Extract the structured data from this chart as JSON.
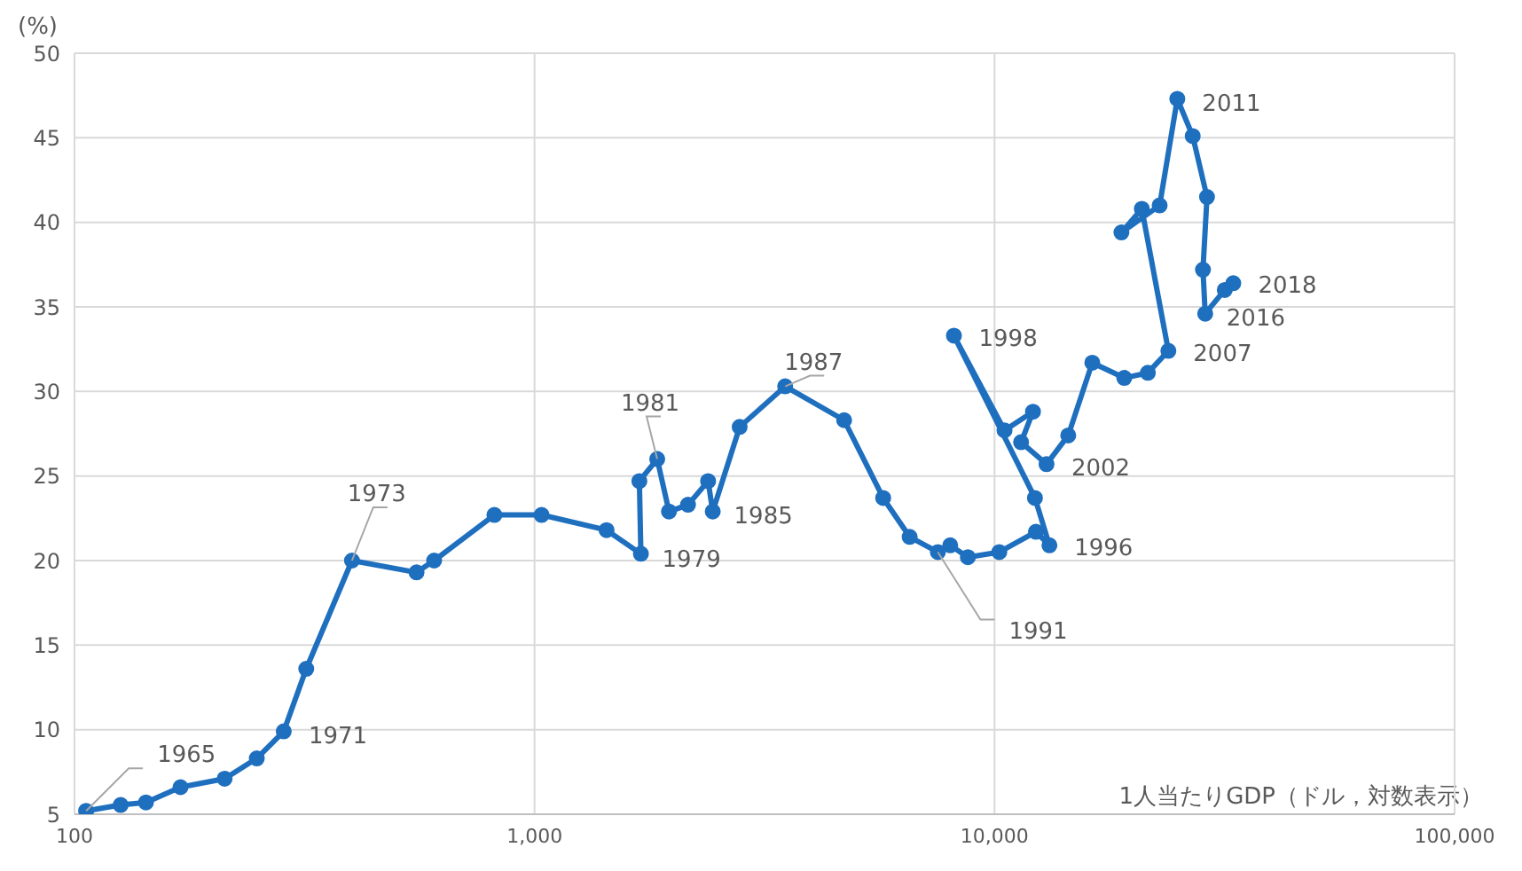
{
  "chart_data": {
    "type": "line",
    "ylabel": "(%)",
    "xlabel": "1人当たりGDP（ドル，対数表示）",
    "x": [
      106,
      126,
      143,
      170,
      212,
      249,
      285,
      319,
      401,
      554,
      605,
      818,
      1036,
      1434,
      1703,
      1690,
      1848,
      1960,
      2156,
      2384,
      2440,
      2792,
      3506,
      4710,
      5726,
      6538,
      7530,
      8010,
      8750,
      10240,
      12300,
      13160,
      12240,
      8160,
      10510,
      12120,
      11420,
      12970,
      14460,
      16310,
      19140,
      21540,
      23870,
      20900,
      18870,
      22850,
      24960,
      26960,
      28960,
      28380,
      28700,
      31650,
      33030
    ],
    "series": [
      {
        "color": "#1f6fbf",
        "values": [
          5.2,
          5.55,
          5.7,
          6.6,
          7.1,
          8.3,
          9.9,
          13.6,
          20.0,
          19.3,
          20.0,
          22.7,
          22.7,
          21.8,
          20.4,
          24.7,
          26.0,
          22.9,
          23.3,
          24.7,
          22.9,
          27.9,
          30.3,
          28.3,
          23.7,
          21.4,
          20.5,
          20.9,
          20.2,
          20.5,
          21.7,
          20.9,
          23.7,
          33.3,
          27.7,
          28.8,
          27.0,
          25.7,
          27.4,
          31.7,
          30.8,
          31.1,
          32.4,
          40.8,
          39.4,
          41.0,
          47.3,
          45.1,
          41.5,
          37.2,
          34.6,
          36.0,
          36.4
        ]
      }
    ],
    "xlim": [
      100,
      100000
    ],
    "xticks": [
      {
        "value": 100,
        "label": "100"
      },
      {
        "value": 1000,
        "label": "1,000"
      },
      {
        "value": 10000,
        "label": "10,000"
      },
      {
        "value": 100000,
        "label": "100,000"
      }
    ],
    "ylim": [
      5,
      50
    ],
    "yticks": [
      5,
      10,
      15,
      20,
      25,
      30,
      35,
      40,
      45,
      50
    ],
    "log": "x",
    "grid": true,
    "legend": false,
    "marker": "circle",
    "line_style": "solid",
    "annotations": [
      {
        "text": "1965",
        "x": 106,
        "y": 5.2
      },
      {
        "text": "1971",
        "x": 285,
        "y": 9.9
      },
      {
        "text": "1973",
        "x": 401,
        "y": 20.0
      },
      {
        "text": "1979",
        "x": 1703,
        "y": 20.4
      },
      {
        "text": "1981",
        "x": 1848,
        "y": 26.0
      },
      {
        "text": "1985",
        "x": 2440,
        "y": 22.9
      },
      {
        "text": "1987",
        "x": 3506,
        "y": 30.3
      },
      {
        "text": "1991",
        "x": 7530,
        "y": 20.5
      },
      {
        "text": "1996",
        "x": 13160,
        "y": 20.9
      },
      {
        "text": "1998",
        "x": 8160,
        "y": 33.3
      },
      {
        "text": "2002",
        "x": 12970,
        "y": 25.7
      },
      {
        "text": "2007",
        "x": 23870,
        "y": 32.4
      },
      {
        "text": "2011",
        "x": 24960,
        "y": 47.3
      },
      {
        "text": "2016",
        "x": 28700,
        "y": 34.6
      },
      {
        "text": "2018",
        "x": 33030,
        "y": 36.4
      }
    ]
  }
}
